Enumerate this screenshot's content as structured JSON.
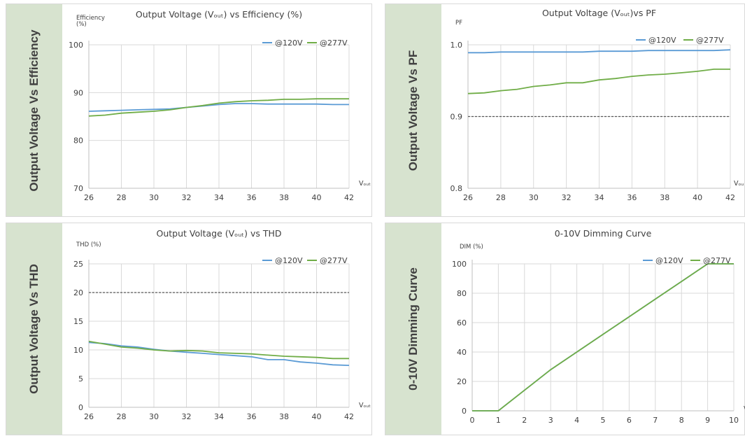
{
  "panels": [
    {
      "side_label": "Output Voltage Vs Efficiency",
      "chart": {
        "type": "line",
        "title": "Output Voltage (Vₒᵤₜ) vs Efficiency (%)",
        "ylabel": "Efficiency\n(%)",
        "xlabel": "Vₒᵤₜ",
        "xlim": [
          26,
          42
        ],
        "ylim": [
          70,
          100
        ],
        "xticks": [
          26,
          28,
          30,
          32,
          34,
          36,
          38,
          40,
          42
        ],
        "yticks": [
          70,
          80,
          90,
          100
        ],
        "grid": true,
        "legend": "top-right",
        "x": [
          26,
          27,
          28,
          29,
          30,
          31,
          32,
          33,
          34,
          35,
          36,
          37,
          38,
          39,
          40,
          41,
          42
        ],
        "series": [
          {
            "name": "@120V",
            "color": "#5b9bd5",
            "values": [
              86.1,
              86.2,
              86.3,
              86.4,
              86.5,
              86.6,
              86.9,
              87.2,
              87.5,
              87.7,
              87.7,
              87.6,
              87.6,
              87.6,
              87.6,
              87.5,
              87.5
            ]
          },
          {
            "name": "@277V",
            "color": "#70ad47",
            "values": [
              85.1,
              85.3,
              85.7,
              85.9,
              86.1,
              86.4,
              86.9,
              87.3,
              87.8,
              88.1,
              88.3,
              88.4,
              88.6,
              88.6,
              88.7,
              88.7,
              88.7
            ]
          }
        ]
      }
    },
    {
      "side_label": "Output Voltage Vs PF",
      "chart": {
        "type": "line",
        "title": "Output Voltage (Vₒᵤₜ)vs PF",
        "ylabel": "PF",
        "xlabel": "Vₒᵤ",
        "xlim": [
          26,
          42
        ],
        "ylim": [
          0.8,
          1.0
        ],
        "xticks": [
          26,
          28,
          30,
          32,
          34,
          36,
          38,
          40,
          42
        ],
        "yticks": [
          0.8,
          0.9,
          1.0
        ],
        "ytick_labels": [
          "0.8",
          "0.9",
          "1.0"
        ],
        "grid": true,
        "legend": "top-right",
        "reference_line": 0.9,
        "x": [
          26,
          27,
          28,
          29,
          30,
          31,
          32,
          33,
          34,
          35,
          36,
          37,
          38,
          39,
          40,
          41,
          42
        ],
        "series": [
          {
            "name": "@120V",
            "color": "#5b9bd5",
            "values": [
              0.989,
              0.989,
              0.99,
              0.99,
              0.99,
              0.99,
              0.99,
              0.99,
              0.991,
              0.991,
              0.991,
              0.992,
              0.992,
              0.992,
              0.992,
              0.992,
              0.993
            ]
          },
          {
            "name": "@277V",
            "color": "#70ad47",
            "values": [
              0.932,
              0.933,
              0.936,
              0.938,
              0.942,
              0.944,
              0.947,
              0.947,
              0.951,
              0.953,
              0.956,
              0.958,
              0.959,
              0.961,
              0.963,
              0.966,
              0.966
            ]
          }
        ]
      }
    },
    {
      "side_label": "Output Voltage Vs THD",
      "chart": {
        "type": "line",
        "title": "Output Voltage (Vₒᵤₜ) vs THD",
        "ylabel": "THD (%)",
        "xlabel": "Vₒᵤₜ",
        "xlim": [
          26,
          42
        ],
        "ylim": [
          0,
          25
        ],
        "xticks": [
          26,
          28,
          30,
          32,
          34,
          36,
          38,
          40,
          42
        ],
        "yticks": [
          0,
          5,
          10,
          15,
          20,
          25
        ],
        "grid": true,
        "legend": "top-right",
        "reference_line": 20,
        "x": [
          26,
          27,
          28,
          29,
          30,
          31,
          32,
          33,
          34,
          35,
          36,
          37,
          38,
          39,
          40,
          41,
          42
        ],
        "series": [
          {
            "name": "@120V",
            "color": "#5b9bd5",
            "values": [
              11.3,
              11.1,
              10.7,
              10.5,
              10.1,
              9.8,
              9.6,
              9.4,
              9.2,
              9.0,
              8.8,
              8.3,
              8.3,
              7.9,
              7.7,
              7.4,
              7.3
            ]
          },
          {
            "name": "@277V",
            "color": "#70ad47",
            "values": [
              11.5,
              11.0,
              10.5,
              10.3,
              10.0,
              9.8,
              9.9,
              9.8,
              9.5,
              9.4,
              9.3,
              9.1,
              8.9,
              8.8,
              8.7,
              8.5,
              8.5
            ]
          }
        ]
      }
    },
    {
      "side_label": "0-10V Dimming Curve",
      "chart": {
        "type": "line",
        "title": "0-10V Dimming Curve",
        "ylabel": "DIM (%)",
        "xlabel": "V",
        "xlim": [
          0,
          10
        ],
        "ylim": [
          0,
          100
        ],
        "xticks": [
          0,
          1,
          2,
          3,
          4,
          5,
          6,
          7,
          8,
          9,
          10
        ],
        "yticks": [
          0,
          20,
          40,
          60,
          80,
          100
        ],
        "grid": true,
        "legend": "top-right",
        "x": [
          0,
          1,
          2,
          3,
          4,
          5,
          6,
          7,
          8,
          9,
          10
        ],
        "series": [
          {
            "name": "@120V",
            "color": "#5b9bd5",
            "values": [
              0,
              0,
              14,
              28,
              40,
              52,
              64,
              76,
              88,
              100,
              100
            ]
          },
          {
            "name": "@277V",
            "color": "#70ad47",
            "values": [
              0,
              0,
              14,
              28,
              40,
              52,
              64,
              76,
              88,
              100,
              100
            ]
          }
        ]
      }
    }
  ]
}
